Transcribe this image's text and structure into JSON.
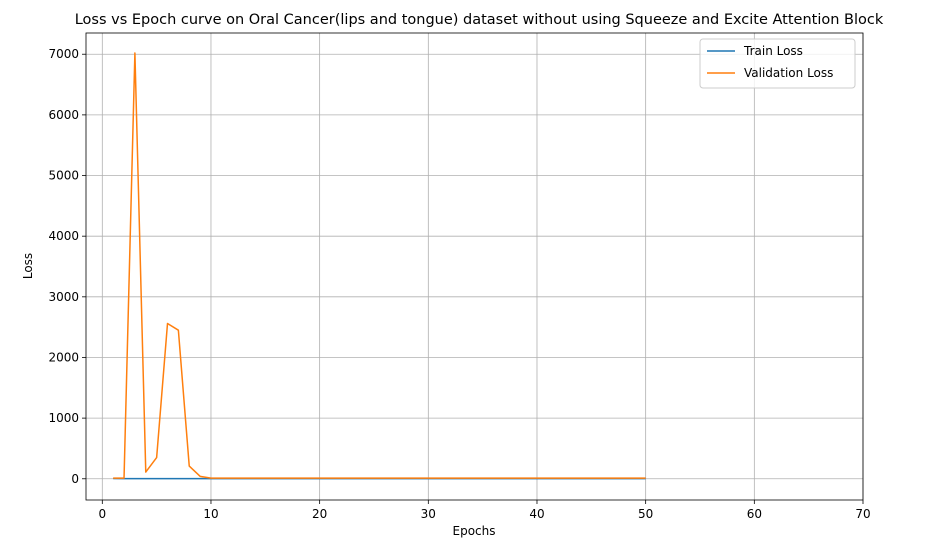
{
  "chart_data": {
    "type": "line",
    "title": "Loss vs Epoch curve on Oral Cancer(lips and tongue) dataset without using Squeeze and Excite Attention Block",
    "xlabel": "Epochs",
    "ylabel": "Loss",
    "xlim": [
      -1.5,
      70
    ],
    "ylim": [
      -350,
      7350
    ],
    "xticks": [
      0,
      10,
      20,
      30,
      40,
      50,
      60,
      70
    ],
    "yticks": [
      0,
      1000,
      2000,
      3000,
      4000,
      5000,
      6000,
      7000
    ],
    "grid": true,
    "legend_position": "top-right",
    "x": [
      1,
      2,
      3,
      4,
      5,
      6,
      7,
      8,
      9,
      10,
      11,
      12,
      13,
      14,
      15,
      16,
      17,
      18,
      19,
      20,
      21,
      22,
      23,
      24,
      25,
      26,
      27,
      28,
      29,
      30,
      31,
      32,
      33,
      34,
      35,
      36,
      37,
      38,
      39,
      40,
      41,
      42,
      43,
      44,
      45,
      46,
      47,
      48,
      49,
      50
    ],
    "series": [
      {
        "name": "Train Loss",
        "color": "#1f77b4",
        "values": [
          4,
          3,
          3,
          3,
          3,
          3,
          3,
          3,
          3,
          3,
          3,
          3,
          3,
          3,
          3,
          3,
          3,
          3,
          3,
          3,
          3,
          3,
          3,
          3,
          3,
          3,
          3,
          3,
          3,
          3,
          3,
          3,
          3,
          3,
          3,
          3,
          3,
          3,
          3,
          3,
          3,
          3,
          3,
          3,
          3,
          3,
          3,
          3,
          3,
          3
        ]
      },
      {
        "name": "Validation Loss",
        "color": "#ff7f0e",
        "values": [
          10,
          10,
          7020,
          110,
          350,
          2560,
          2450,
          210,
          40,
          10,
          10,
          10,
          10,
          10,
          10,
          10,
          10,
          10,
          10,
          10,
          10,
          10,
          10,
          10,
          10,
          10,
          10,
          10,
          10,
          10,
          10,
          10,
          10,
          10,
          10,
          10,
          10,
          10,
          10,
          10,
          10,
          10,
          10,
          10,
          10,
          10,
          10,
          10,
          10,
          10
        ]
      }
    ]
  }
}
